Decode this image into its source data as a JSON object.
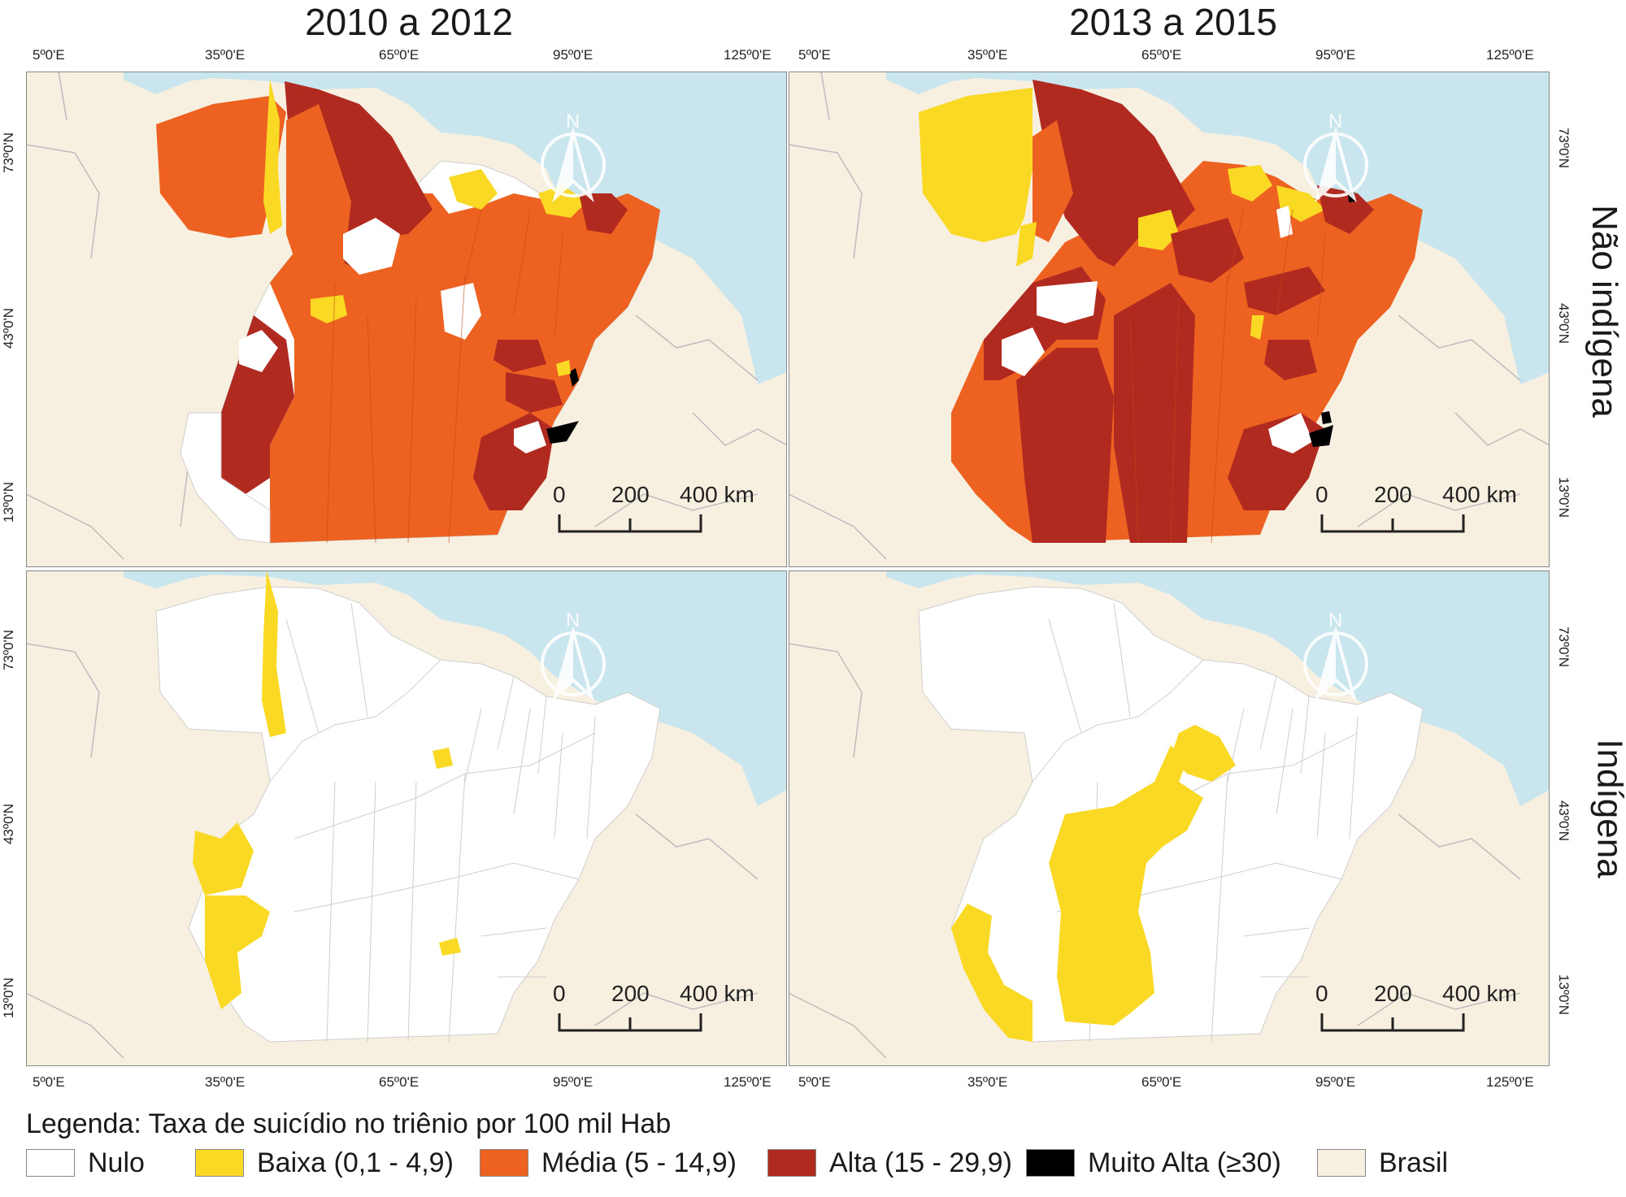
{
  "titles": {
    "left": "2010 a 2012",
    "right": "2013 a 2015"
  },
  "row_labels": {
    "top": "Não indígena",
    "bottom": "Indígena"
  },
  "lon_ticks": [
    "5º0'E",
    "35º0'E",
    "65º0'E",
    "95º0'E",
    "125º0'E"
  ],
  "lat_ticks": [
    "73º0'N",
    "43º0'N",
    "13º0'N"
  ],
  "scale_bar": {
    "t0": "0",
    "t1": "200",
    "t2": "400 km"
  },
  "north_label": "N",
  "legend": {
    "title": "Legenda: Taxa de suicídio no triênio por 100 mil Hab",
    "items": [
      {
        "label": "Nulo",
        "color": "#ffffff"
      },
      {
        "label": "Baixa (0,1 - 4,9)",
        "color": "#f9d923"
      },
      {
        "label": "Média (5 - 14,9)",
        "color": "#ee6221"
      },
      {
        "label": "Alta (15 - 29,9)",
        "color": "#b02a20"
      },
      {
        "label": "Muito Alta (≥30)",
        "color": "#000000"
      },
      {
        "label": "Brasil",
        "color": "#f7efe0"
      }
    ]
  },
  "colors": {
    "sea": "#c9e6ef",
    "land": "#f7efe0",
    "border": "#bdbdbd"
  }
}
